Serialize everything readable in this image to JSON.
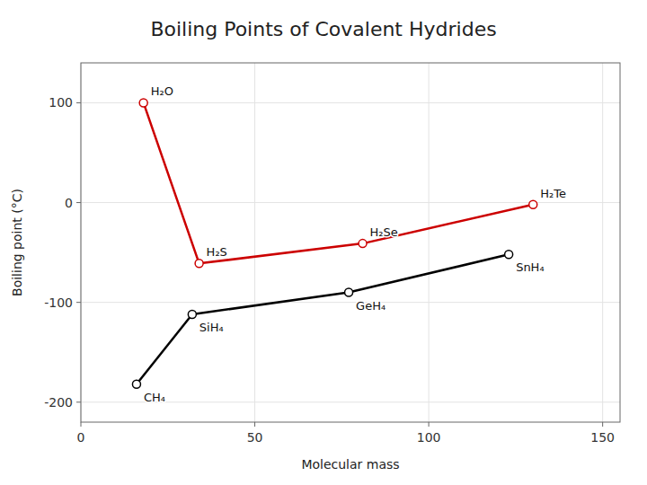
{
  "chart_data": {
    "type": "line",
    "title": "Boiling Points of Covalent Hydrides",
    "xlabel": "Molecular mass",
    "ylabel": "Boiling point (°C)",
    "xlim": [
      0,
      155
    ],
    "ylim": [
      -220,
      140
    ],
    "xticks": [
      0,
      50,
      100,
      150
    ],
    "yticks": [
      -200,
      -100,
      0,
      100
    ],
    "grid": true,
    "marker": "circle",
    "series": [
      {
        "x": [
          18,
          34,
          81,
          130
        ],
        "values": [
          100,
          -61,
          -41,
          -2
        ],
        "color": "#cc0000",
        "labels": [
          "H₂O",
          "H₂S",
          "H₂Se",
          "H₂Te"
        ]
      },
      {
        "x": [
          16,
          32,
          77,
          123
        ],
        "values": [
          -182,
          -112,
          -90,
          -52
        ],
        "color": "#000000",
        "labels": [
          "CH₄",
          "SiH₄",
          "GeH₄",
          "SnH₄"
        ]
      }
    ]
  }
}
